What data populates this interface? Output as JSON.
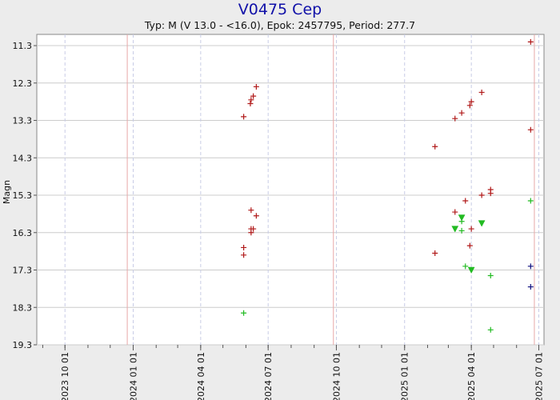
{
  "chart_data": {
    "type": "scatter",
    "title": "V0475 Cep",
    "subtitle": "Typ: M (V 13.0 - <16.0), Epok: 2457795, Period: 277.7",
    "ylabel": "Magn",
    "y_inverted": true,
    "ylim": [
      19.3,
      11.0
    ],
    "y_ticks": [
      "11.3",
      "12.3",
      "13.3",
      "14.3",
      "15.3",
      "16.3",
      "17.3",
      "18.3",
      "19.3"
    ],
    "x_ticks": [
      "2023 10 01",
      "2024 01 01",
      "2024 04 01",
      "2024 07 01",
      "2024 10 01",
      "2025 01 01",
      "2025 04 01",
      "2025 07 01"
    ],
    "xlim": [
      "2023-08-24",
      "2025-07-08"
    ],
    "grid": true,
    "vertical_markers": [
      {
        "date": "2023-12-24",
        "color": "#e8a8a8"
      },
      {
        "date": "2024-09-27",
        "color": "#e8a8a8"
      },
      {
        "date": "2025-06-25",
        "color": "#e8a8a8"
      }
    ],
    "colors": {
      "red": "#b01818",
      "green": "#22bb22",
      "navy": "#101080",
      "grid": "#cccccc",
      "dashed": "#c8cce6"
    },
    "series": [
      {
        "marker": "plus",
        "color": "#b01818",
        "points": [
          [
            "2024-05-29",
            13.2
          ],
          [
            "2024-06-07",
            12.85
          ],
          [
            "2024-06-08",
            12.75
          ],
          [
            "2024-06-11",
            12.65
          ],
          [
            "2024-06-15",
            12.4
          ],
          [
            "2024-05-29",
            16.7
          ],
          [
            "2024-05-29",
            16.9
          ],
          [
            "2024-06-08",
            16.2
          ],
          [
            "2024-06-08",
            16.3
          ],
          [
            "2024-06-11",
            16.2
          ],
          [
            "2024-06-08",
            15.7
          ],
          [
            "2024-06-15",
            15.85
          ],
          [
            "2025-02-11",
            14.0
          ],
          [
            "2025-03-10",
            13.25
          ],
          [
            "2025-03-19",
            13.1
          ],
          [
            "2025-03-30",
            12.9
          ],
          [
            "2025-04-01",
            12.8
          ],
          [
            "2025-04-15",
            12.55
          ],
          [
            "2025-03-10",
            15.75
          ],
          [
            "2025-03-24",
            15.45
          ],
          [
            "2025-04-15",
            15.3
          ],
          [
            "2025-04-27",
            15.25
          ],
          [
            "2025-04-27",
            15.15
          ],
          [
            "2025-04-01",
            16.2
          ],
          [
            "2025-03-30",
            16.65
          ],
          [
            "2025-02-11",
            16.85
          ],
          [
            "2025-06-20",
            11.2
          ],
          [
            "2025-06-20",
            13.55
          ]
        ]
      },
      {
        "marker": "plus",
        "color": "#22bb22",
        "points": [
          [
            "2024-05-29",
            18.45
          ],
          [
            "2025-03-19",
            16.0
          ],
          [
            "2025-03-19",
            16.25
          ],
          [
            "2025-03-24",
            17.2
          ],
          [
            "2025-04-27",
            17.45
          ],
          [
            "2025-04-27",
            18.9
          ],
          [
            "2025-06-20",
            15.45
          ]
        ]
      },
      {
        "marker": "triangle-down",
        "color": "#22bb22",
        "points": [
          [
            "2025-03-10",
            16.2
          ],
          [
            "2025-03-19",
            15.9
          ],
          [
            "2025-04-01",
            17.3
          ],
          [
            "2025-04-15",
            16.05
          ]
        ]
      },
      {
        "marker": "plus",
        "color": "#101080",
        "points": [
          [
            "2025-06-20",
            17.2
          ],
          [
            "2025-06-20",
            17.75
          ]
        ]
      }
    ]
  }
}
